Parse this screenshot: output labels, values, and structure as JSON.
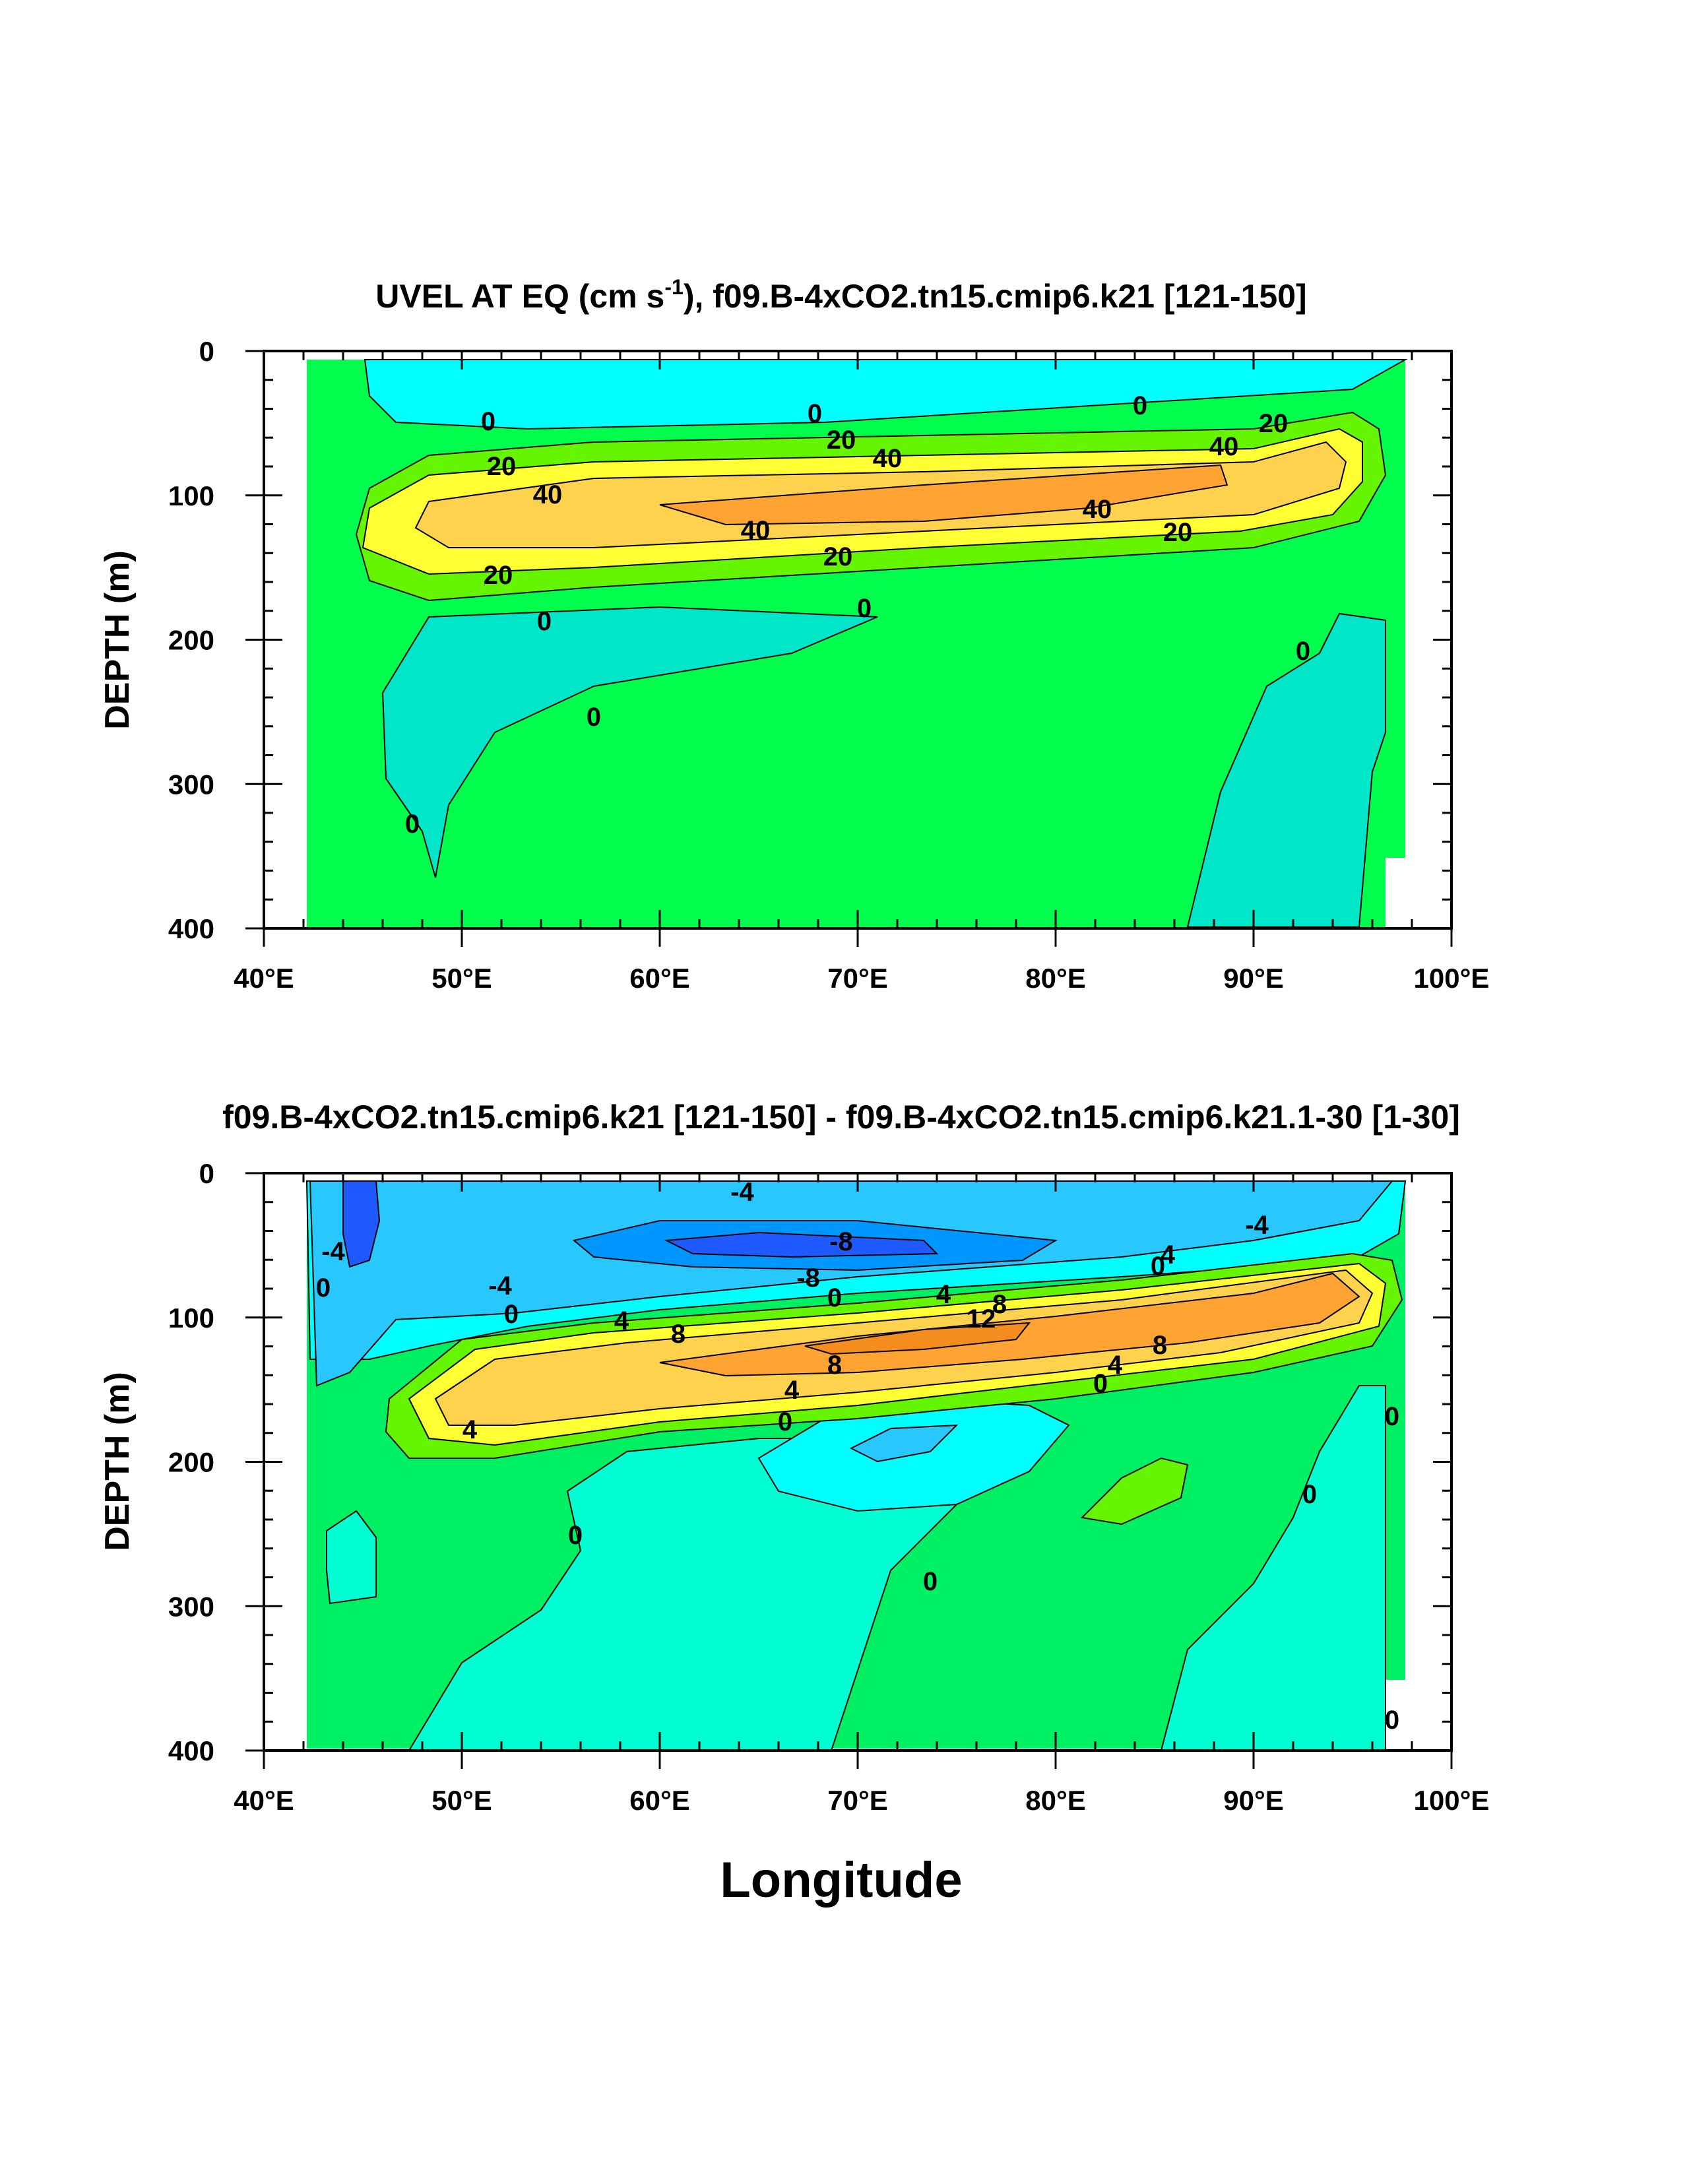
{
  "chart_data": [
    {
      "type": "contour",
      "title_main": "UVEL AT EQ (cm s",
      "title_sup": "-1",
      "title_rest": "), f09.B-4xCO2.tn15.cmip6.k21 [121-150]",
      "xlabel": "",
      "ylabel": "DEPTH (m)",
      "xlim": [
        40,
        100
      ],
      "ylim": [
        400,
        0
      ],
      "xticks": [
        40,
        50,
        60,
        70,
        80,
        90,
        100
      ],
      "xtick_labels": [
        "40°E",
        "50°E",
        "60°E",
        "70°E",
        "80°E",
        "90°E",
        "100°E"
      ],
      "yticks": [
        0,
        100,
        200,
        300,
        400
      ],
      "ytick_labels": [
        "0",
        "100",
        "200",
        "300",
        "400"
      ],
      "contour_labels": [
        "0",
        "0",
        "0",
        "20",
        "20",
        "20",
        "20",
        "20",
        "20",
        "40",
        "40",
        "40",
        "40",
        "40",
        "0",
        "0",
        "0",
        "0",
        "0"
      ],
      "colors": {
        "neg": "#00ffff",
        "zero": "#00e6c8",
        "base": "#00ff4c",
        "c20": "#66f500",
        "c40": "#ffff33",
        "c60": "#ffd24d",
        "c80": "#ffa333"
      }
    },
    {
      "type": "contour",
      "title": "f09.B-4xCO2.tn15.cmip6.k21 [121-150] - f09.B-4xCO2.tn15.cmip6.k21.1-30 [1-30]",
      "xlabel": "Longitude",
      "ylabel": "DEPTH (m)",
      "xlim": [
        40,
        100
      ],
      "ylim": [
        400,
        0
      ],
      "xticks": [
        40,
        50,
        60,
        70,
        80,
        90,
        100
      ],
      "xtick_labels": [
        "40°E",
        "50°E",
        "60°E",
        "70°E",
        "80°E",
        "90°E",
        "100°E"
      ],
      "yticks": [
        0,
        100,
        200,
        300,
        400
      ],
      "ytick_labels": [
        "0",
        "100",
        "200",
        "300",
        "400"
      ],
      "contour_labels": [
        "-4",
        "-4",
        "-8",
        "-8",
        "-4",
        "-4",
        "0",
        "0",
        "4",
        "4",
        "4",
        "8",
        "12",
        "8",
        "8",
        "8",
        "4",
        "4",
        "4",
        "0",
        "0",
        "0",
        "0",
        "0",
        "0",
        "0",
        "0",
        "0"
      ],
      "colors": {
        "m12": "#1e5aff",
        "m8": "#0096ff",
        "m4": "#28c8ff",
        "m0": "#00ffff",
        "zero": "#00ffd2",
        "base": "#00f064",
        "p4": "#66f500",
        "p8": "#ffff33",
        "p12": "#ffd24d",
        "p16": "#ffa333"
      }
    }
  ]
}
